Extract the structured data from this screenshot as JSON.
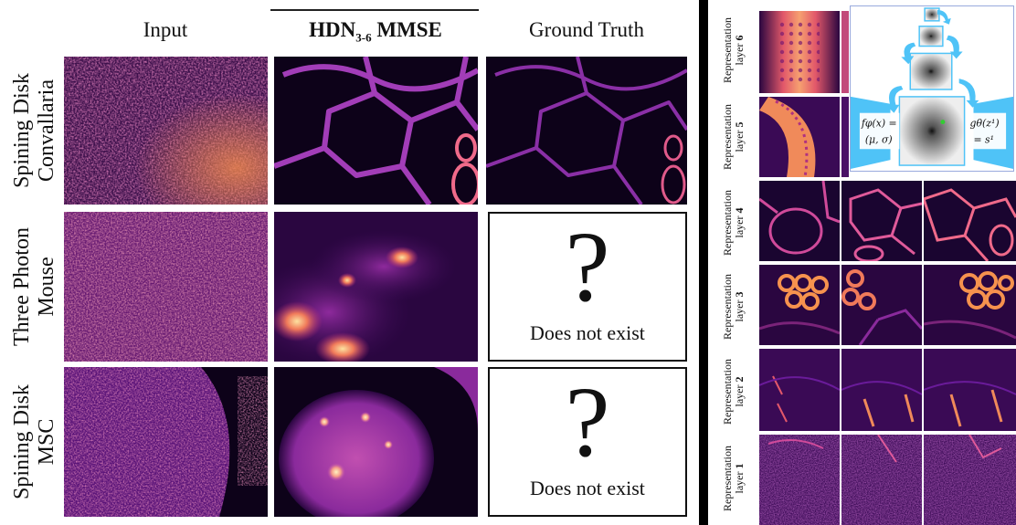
{
  "columns": {
    "input": "Input",
    "hdn_main": "HDN",
    "hdn_sub": "3-6",
    "hdn_suffix": " MMSE",
    "ground_truth": "Ground Truth"
  },
  "rows": [
    {
      "line1": "Spining Disk",
      "line2": "Convallaria"
    },
    {
      "line1": "Three Photon",
      "line2": "Mouse"
    },
    {
      "line1": "Spining Disk",
      "line2": "MSC"
    }
  ],
  "missing_gt": {
    "symbol": "?",
    "text": "Does not exist"
  },
  "representation": {
    "word": "Representation",
    "layers": [
      {
        "prefix": "layer",
        "num": "6"
      },
      {
        "prefix": "layer",
        "num": "5"
      },
      {
        "prefix": "layer",
        "num": "4"
      },
      {
        "prefix": "layer",
        "num": "3"
      },
      {
        "prefix": "layer",
        "num": "2"
      },
      {
        "prefix": "layer",
        "num": "1"
      }
    ]
  },
  "inset": {
    "encoder": "fφ(x) =",
    "encoder_out": "(μ, σ)",
    "decoder": "gθ(z¹)",
    "decoder_out": "= s¹"
  },
  "colors": {
    "colormap_dark": "#0d0219",
    "colormap_purple": "#6a1b9a",
    "colormap_magenta": "#c2307a",
    "colormap_orange": "#f6924e",
    "colormap_light": "#fcf0b0",
    "inset_accent": "#4fc3f7"
  }
}
